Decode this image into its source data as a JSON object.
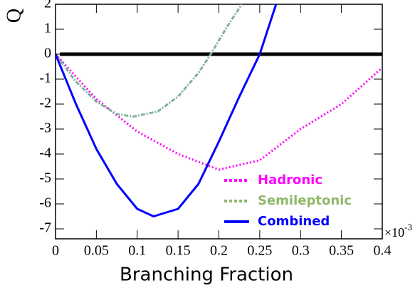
{
  "chart_data": {
    "type": "line",
    "ylabel": "Q",
    "xlabel": "Branching Fraction",
    "x_multiplier": "×10",
    "x_multiplier_exponent": "-3",
    "xlim": [
      0,
      0.4
    ],
    "xticks": [
      0,
      0.05,
      0.1,
      0.15,
      0.2,
      0.25,
      0.3,
      0.35,
      0.4
    ],
    "ylim": [
      -7.4,
      2
    ],
    "yticks": [
      -7,
      -6,
      -5,
      -4,
      -3,
      -2,
      -1,
      0,
      1,
      2
    ],
    "reference_line": 0,
    "legend": "lower right",
    "series": [
      {
        "name": "Hadronic",
        "color": "#ff00ff",
        "dash": "dotted",
        "x": [
          0,
          0.05,
          0.1,
          0.15,
          0.2,
          0.25,
          0.3,
          0.35,
          0.4
        ],
        "values": [
          0,
          -1.8,
          -3.1,
          -4.0,
          -4.63,
          -4.25,
          -3.0,
          -2.0,
          -0.54
        ]
      },
      {
        "name": "Semileptonic",
        "color": "#7fb39a",
        "legend_color": "#8fb86a",
        "dash": "dashdot",
        "x": [
          0,
          0.025,
          0.05,
          0.075,
          0.095,
          0.125,
          0.15,
          0.175,
          0.19,
          0.21,
          0.228
        ],
        "values": [
          0,
          -1.1,
          -1.9,
          -2.4,
          -2.5,
          -2.3,
          -1.7,
          -0.75,
          0,
          1.1,
          2
        ]
      },
      {
        "name": "Combined",
        "color": "#0000ff",
        "dash": "solid",
        "x": [
          0,
          0.025,
          0.05,
          0.075,
          0.1,
          0.12,
          0.15,
          0.175,
          0.2,
          0.225,
          0.25,
          0.27
        ],
        "values": [
          0,
          -2.0,
          -3.8,
          -5.2,
          -6.2,
          -6.5,
          -6.2,
          -5.2,
          -3.5,
          -1.7,
          0,
          2
        ]
      }
    ]
  }
}
